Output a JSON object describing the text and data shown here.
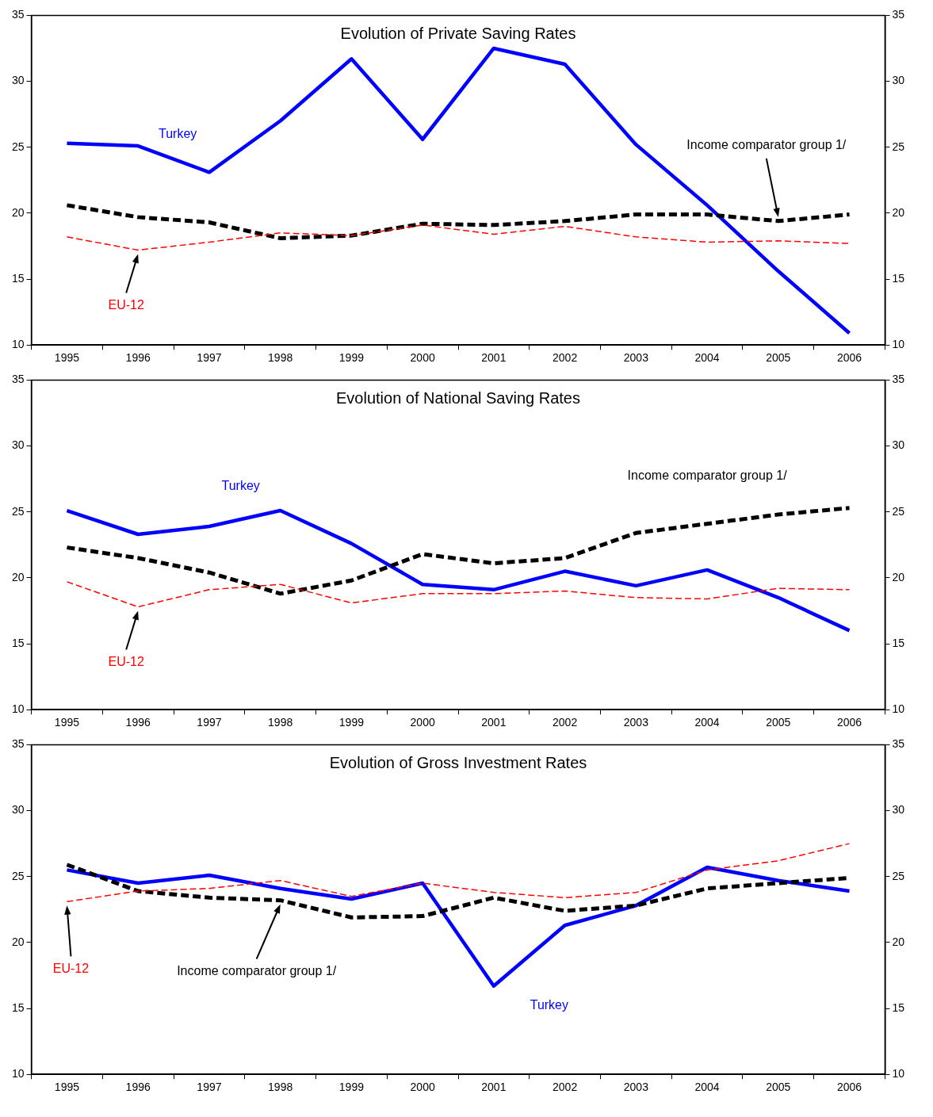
{
  "chart_data": [
    {
      "type": "line",
      "title": "Evolution of Private Saving Rates",
      "categories": [
        "1995",
        "1996",
        "1997",
        "1998",
        "1999",
        "2000",
        "2001",
        "2002",
        "2003",
        "2004",
        "2005",
        "2006"
      ],
      "ylim": [
        10,
        35
      ],
      "yticks": [
        10,
        15,
        20,
        25,
        30,
        35
      ],
      "y2lim": [
        10,
        35
      ],
      "y2ticks": [
        10,
        15,
        20,
        25,
        30,
        35
      ],
      "grid": false,
      "legend": false,
      "marker": "none",
      "series": [
        {
          "name": "Turkey",
          "color": "#0000ff",
          "line_style": "solid",
          "values": [
            25.3,
            25.1,
            23.1,
            27.0,
            31.7,
            25.6,
            32.5,
            31.3,
            25.2,
            20.6,
            15.6,
            10.9
          ]
        },
        {
          "name": "Income comparator group 1/",
          "color": "#000000",
          "line_style": "dashed",
          "values": [
            20.6,
            19.7,
            19.3,
            18.1,
            18.3,
            19.2,
            19.1,
            19.4,
            19.9,
            19.9,
            19.4,
            19.9
          ]
        },
        {
          "name": "EU-12",
          "color": "#ff0000",
          "line_style": "dashed",
          "values": [
            18.2,
            17.2,
            17.8,
            18.5,
            18.3,
            19.1,
            18.4,
            19.0,
            18.2,
            17.8,
            17.9,
            17.7
          ]
        }
      ]
    },
    {
      "type": "line",
      "title": "Evolution of National Saving Rates",
      "categories": [
        "1995",
        "1996",
        "1997",
        "1998",
        "1999",
        "2000",
        "2001",
        "2002",
        "2003",
        "2004",
        "2005",
        "2006"
      ],
      "ylim": [
        10,
        35
      ],
      "yticks": [
        10,
        15,
        20,
        25,
        30,
        35
      ],
      "y2lim": [
        10,
        35
      ],
      "y2ticks": [
        10,
        15,
        20,
        25,
        30,
        35
      ],
      "grid": false,
      "legend": false,
      "marker": "none",
      "series": [
        {
          "name": "Turkey",
          "color": "#0000ff",
          "line_style": "solid",
          "values": [
            25.1,
            23.3,
            23.9,
            25.1,
            22.6,
            19.5,
            19.1,
            20.5,
            19.4,
            20.6,
            18.5,
            16.0
          ]
        },
        {
          "name": "Income comparator group 1/",
          "color": "#000000",
          "line_style": "dashed",
          "values": [
            22.3,
            21.5,
            20.4,
            18.8,
            19.8,
            21.8,
            21.1,
            21.5,
            23.4,
            24.1,
            24.8,
            25.3
          ]
        },
        {
          "name": "EU-12",
          "color": "#ff0000",
          "line_style": "dashed",
          "values": [
            19.7,
            17.8,
            19.1,
            19.5,
            18.1,
            18.8,
            18.8,
            19.0,
            18.5,
            18.4,
            19.2,
            19.1
          ]
        }
      ]
    },
    {
      "type": "line",
      "title": "Evolution of Gross Investment Rates",
      "categories": [
        "1995",
        "1996",
        "1997",
        "1998",
        "1999",
        "2000",
        "2001",
        "2002",
        "2003",
        "2004",
        "2005",
        "2006"
      ],
      "ylim": [
        10,
        35
      ],
      "yticks": [
        10,
        15,
        20,
        25,
        30,
        35
      ],
      "y2lim": [
        10,
        35
      ],
      "y2ticks": [
        10,
        15,
        20,
        25,
        30,
        35
      ],
      "grid": false,
      "legend": false,
      "marker": "none",
      "series": [
        {
          "name": "Turkey",
          "color": "#0000ff",
          "line_style": "solid",
          "values": [
            25.5,
            24.5,
            25.1,
            24.1,
            23.3,
            24.5,
            16.7,
            21.3,
            22.8,
            25.7,
            24.7,
            23.9
          ]
        },
        {
          "name": "Income comparator group 1/",
          "color": "#000000",
          "line_style": "dashed",
          "values": [
            25.9,
            23.9,
            23.4,
            23.2,
            21.9,
            22.0,
            23.4,
            22.4,
            22.8,
            24.1,
            24.5,
            24.9
          ]
        },
        {
          "name": "EU-12",
          "color": "#ff0000",
          "line_style": "dashed",
          "values": [
            23.1,
            23.9,
            24.1,
            24.7,
            23.5,
            24.5,
            23.8,
            23.4,
            23.8,
            25.5,
            26.2,
            27.5
          ]
        }
      ]
    }
  ]
}
